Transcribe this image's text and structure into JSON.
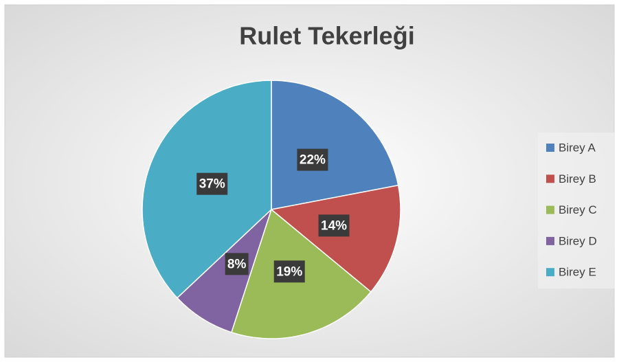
{
  "chart_data": {
    "type": "pie",
    "title": "Rulet Tekerleği",
    "categories": [
      "Birey A",
      "Birey B",
      "Birey C",
      "Birey D",
      "Birey E"
    ],
    "values": [
      22,
      14,
      19,
      8,
      37
    ],
    "value_labels": [
      "22%",
      "14%",
      "19%",
      "8%",
      "37%"
    ],
    "colors": [
      "#4f81bd",
      "#c0504d",
      "#9bbb59",
      "#8064a2",
      "#4bacc6"
    ],
    "legend": "right"
  }
}
